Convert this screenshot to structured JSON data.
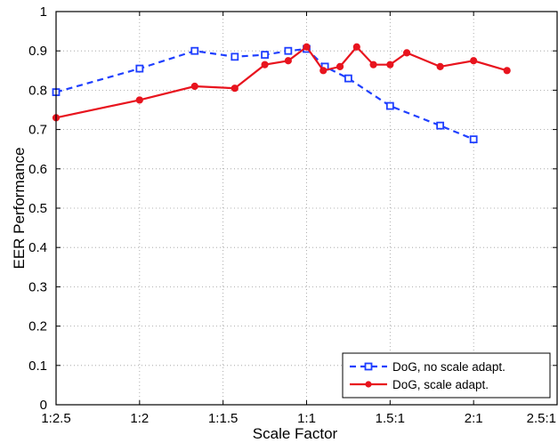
{
  "chart_data": {
    "type": "line",
    "xlabel": "Scale Factor",
    "ylabel": "EER Performance",
    "xlim": [
      -1.5,
      1.5
    ],
    "ylim": [
      0,
      1
    ],
    "grid": true,
    "legend_position": "bottom-right",
    "x_ticks": [
      -1.5,
      -1,
      -0.5,
      0,
      0.5,
      1,
      1.5
    ],
    "x_tick_labels": [
      "1:2.5",
      "1:2",
      "1:1.5",
      "1:1",
      "1.5:1",
      "2:1",
      "2.5:1"
    ],
    "y_ticks": [
      0,
      0.1,
      0.2,
      0.3,
      0.4,
      0.5,
      0.6,
      0.7,
      0.8,
      0.9,
      1
    ],
    "y_tick_labels": [
      "0",
      "0.1",
      "0.2",
      "0.3",
      "0.4",
      "0.5",
      "0.6",
      "0.7",
      "0.8",
      "0.9",
      "1"
    ],
    "series": [
      {
        "name": "DoG, no scale adapt.",
        "color": "#1f3fff",
        "line_style": "dashed",
        "marker": "square",
        "x": [
          -1.5,
          -1,
          -0.67,
          -0.43,
          -0.25,
          -0.11,
          0,
          0.11,
          0.25,
          0.5,
          0.8,
          1
        ],
        "y": [
          0.795,
          0.855,
          0.9,
          0.885,
          0.89,
          0.9,
          0.905,
          0.86,
          0.83,
          0.76,
          0.71,
          0.675
        ]
      },
      {
        "name": "DoG, scale adapt.",
        "color": "#e8141e",
        "line_style": "solid",
        "marker": "circle",
        "x": [
          -1.5,
          -1,
          -0.67,
          -0.43,
          -0.25,
          -0.11,
          0,
          0.1,
          0.2,
          0.3,
          0.4,
          0.5,
          0.6,
          0.8,
          1,
          1.2
        ],
        "y": [
          0.73,
          0.775,
          0.81,
          0.805,
          0.865,
          0.875,
          0.91,
          0.85,
          0.86,
          0.91,
          0.865,
          0.865,
          0.895,
          0.86,
          0.875,
          0.85
        ]
      }
    ]
  }
}
